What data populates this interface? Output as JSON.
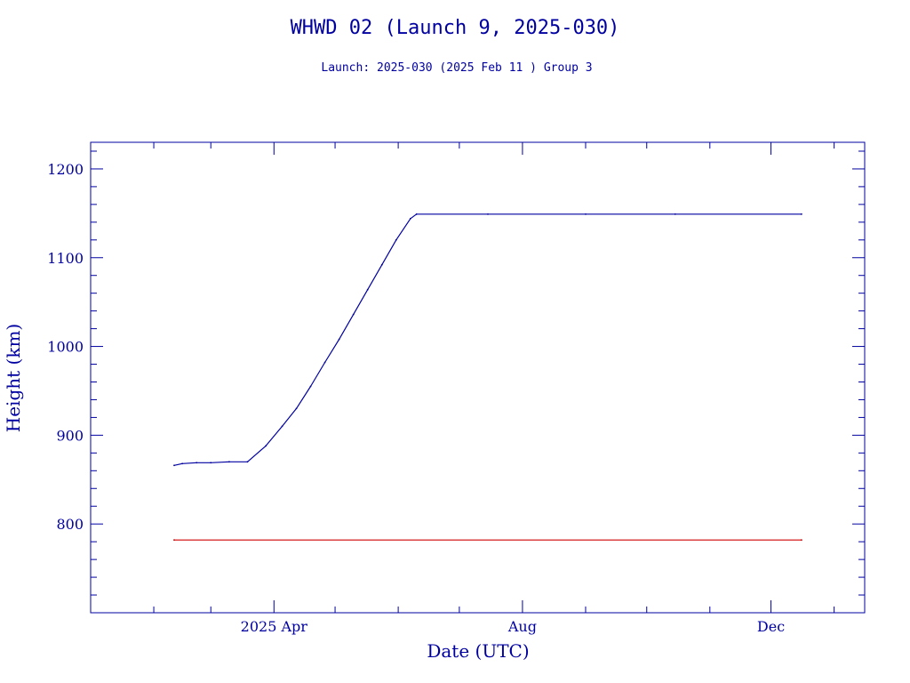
{
  "colors": {
    "axis": "#0000a0",
    "text": "#0000a0",
    "height_line": "#0000a0",
    "reference_line": "#d00000"
  },
  "chart_data": {
    "type": "line",
    "title": "WHWD 02 (Launch 9, 2025-030)",
    "subtitle": "Launch: 2025-030  (2025 Feb 11 )  Group 3",
    "xlabel": "Date (UTC)",
    "ylabel": "Height (km)",
    "xlim": [
      "2025-01-01",
      "2026-01-16"
    ],
    "ylim": [
      700,
      1230
    ],
    "x_ticks": [
      {
        "label": "2025 Apr",
        "date": "2025-04-01"
      },
      {
        "label": "Aug",
        "date": "2025-08-01"
      },
      {
        "label": "Dec",
        "date": "2025-12-01"
      }
    ],
    "y_ticks": [
      800,
      900,
      1000,
      1100,
      1200
    ],
    "grid": false,
    "series": [
      {
        "color": "#0000a0",
        "points": [
          [
            "2025-02-11",
            866
          ],
          [
            "2025-02-15",
            868
          ],
          [
            "2025-02-22",
            869
          ],
          [
            "2025-03-01",
            869
          ],
          [
            "2025-03-10",
            870
          ],
          [
            "2025-03-19",
            870
          ],
          [
            "2025-03-28",
            888
          ],
          [
            "2025-04-05",
            910
          ],
          [
            "2025-04-12",
            930
          ],
          [
            "2025-04-19",
            955
          ],
          [
            "2025-04-26",
            982
          ],
          [
            "2025-05-03",
            1008
          ],
          [
            "2025-05-10",
            1036
          ],
          [
            "2025-05-17",
            1064
          ],
          [
            "2025-05-24",
            1092
          ],
          [
            "2025-05-31",
            1120
          ],
          [
            "2025-06-07",
            1144
          ],
          [
            "2025-06-10",
            1149
          ],
          [
            "2025-07-15",
            1149
          ],
          [
            "2025-09-01",
            1149
          ],
          [
            "2025-10-15",
            1149
          ],
          [
            "2025-12-16",
            1149
          ]
        ]
      },
      {
        "color": "#d00000",
        "points": [
          [
            "2025-02-11",
            782
          ],
          [
            "2025-12-16",
            782
          ]
        ]
      }
    ]
  }
}
